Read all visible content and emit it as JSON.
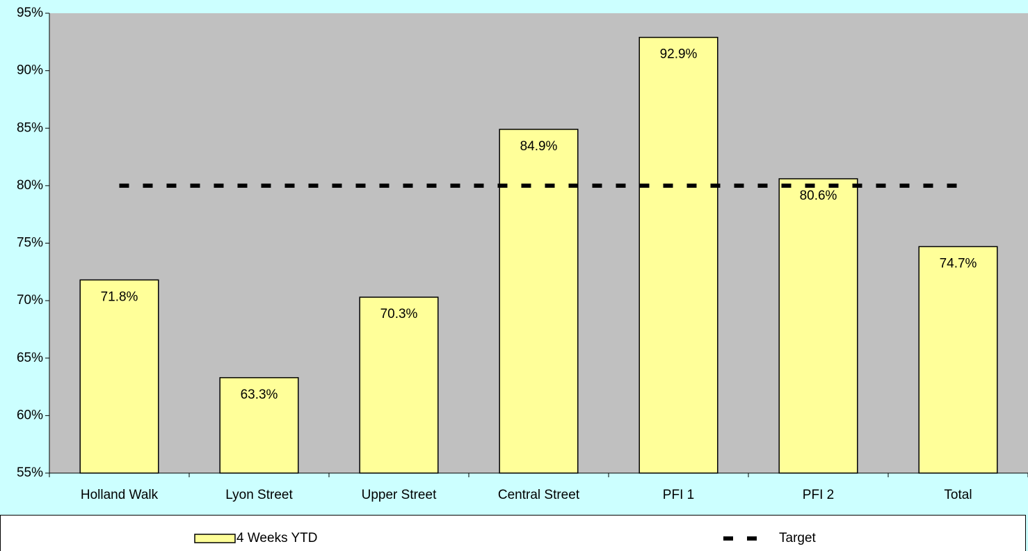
{
  "chart_data": {
    "type": "bar",
    "categories": [
      "Holland Walk",
      "Lyon Street",
      "Upper Street",
      "Central Street",
      "PFI 1",
      "PFI 2",
      "Total"
    ],
    "series": [
      {
        "name": "4 Weeks YTD",
        "type": "bar",
        "color": "#ffff99",
        "values": [
          71.8,
          63.3,
          70.3,
          84.9,
          92.9,
          80.6,
          74.7
        ],
        "value_labels": [
          "71.8%",
          "63.3%",
          "70.3%",
          "84.9%",
          "92.9%",
          "80.6%",
          "74.7%"
        ]
      },
      {
        "name": "Target",
        "type": "line",
        "color": "#000000",
        "dashed": true,
        "values": [
          80,
          80,
          80,
          80,
          80,
          80,
          80
        ]
      }
    ],
    "ylim": [
      55,
      95
    ],
    "yticks": [
      {
        "value": 55,
        "label": "55%"
      },
      {
        "value": 60,
        "label": "60%"
      },
      {
        "value": 65,
        "label": "65%"
      },
      {
        "value": 70,
        "label": "70%"
      },
      {
        "value": 75,
        "label": "75%"
      },
      {
        "value": 80,
        "label": "80%"
      },
      {
        "value": 85,
        "label": "85%"
      },
      {
        "value": 90,
        "label": "90%"
      },
      {
        "value": 95,
        "label": "95%"
      }
    ],
    "legend": "bottom"
  }
}
